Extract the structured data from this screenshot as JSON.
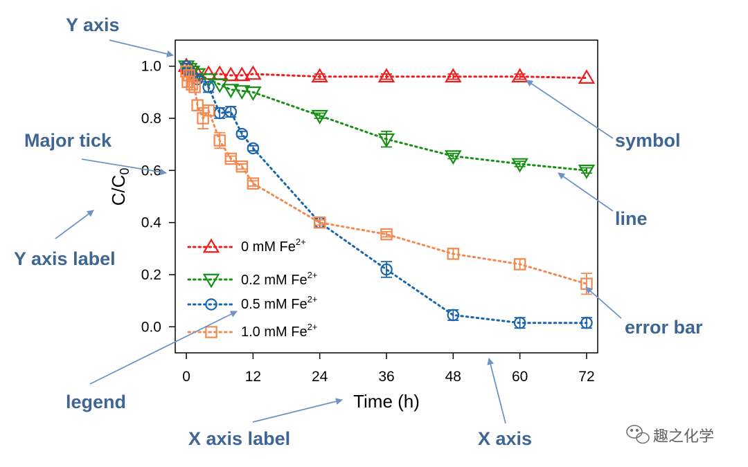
{
  "chart_data": {
    "type": "line",
    "xlabel": "Time (h)",
    "ylabel_main": "C/C",
    "ylabel_sub": "0",
    "xlim": [
      -2,
      74
    ],
    "ylim": [
      -0.1,
      1.1
    ],
    "xticks": [
      0,
      12,
      24,
      36,
      48,
      60,
      72
    ],
    "yticks": [
      0.0,
      0.2,
      0.4,
      0.6,
      0.8,
      1.0
    ],
    "ytick_labels": [
      "0.0",
      "0.2",
      "0.4",
      "0.6",
      "0.8",
      "1.0"
    ],
    "legend_position": "lower-left",
    "series": [
      {
        "name": "0 mM Fe2+",
        "label_main": "0 mM Fe",
        "label_sup": "2+",
        "color": "#ee1c1c",
        "marker": "triangle-up",
        "x": [
          0,
          0.5,
          1,
          2,
          4,
          6,
          8,
          10,
          12,
          24,
          36,
          48,
          60,
          72
        ],
        "y": [
          1.0,
          0.99,
          0.98,
          0.97,
          0.97,
          0.97,
          0.965,
          0.965,
          0.97,
          0.96,
          0.96,
          0.96,
          0.96,
          0.955
        ],
        "err": [
          0,
          0,
          0,
          0,
          0,
          0,
          0,
          0,
          0,
          0.01,
          0.01,
          0.01,
          0.01,
          0
        ]
      },
      {
        "name": "0.2 mM Fe2+",
        "label_main": "0.2 mM Fe",
        "label_sup": "2+",
        "color": "#159014",
        "marker": "triangle-down",
        "x": [
          0,
          0.5,
          1,
          2,
          4,
          6,
          8,
          10,
          12,
          24,
          36,
          48,
          60,
          72
        ],
        "y": [
          1.0,
          0.99,
          0.98,
          0.97,
          0.95,
          0.93,
          0.91,
          0.905,
          0.9,
          0.81,
          0.72,
          0.655,
          0.625,
          0.6
        ],
        "err": [
          0,
          0,
          0,
          0,
          0,
          0,
          0,
          0,
          0,
          0.01,
          0.03,
          0.01,
          0.01,
          0.01
        ]
      },
      {
        "name": "0.5 mM Fe2+",
        "label_main": "0.5 mM Fe",
        "label_sup": "2+",
        "color": "#1a64ad",
        "marker": "circle",
        "x": [
          0,
          0.5,
          1,
          2,
          4,
          6,
          8,
          10,
          12,
          24,
          36,
          48,
          60,
          72
        ],
        "y": [
          1.0,
          0.98,
          0.96,
          0.95,
          0.92,
          0.82,
          0.825,
          0.74,
          0.685,
          0.4,
          0.22,
          0.045,
          0.015,
          0.015
        ],
        "err": [
          0.01,
          0.01,
          0.01,
          0.01,
          0.02,
          0.02,
          0.02,
          0.01,
          0.01,
          0.02,
          0.03,
          0.02,
          0.02,
          0.02
        ]
      },
      {
        "name": "1.0 mM Fe2+",
        "label_main": "1.0 mM Fe",
        "label_sup": "2+",
        "color": "#f4884e",
        "marker": "square",
        "x": [
          0,
          0.25,
          0.5,
          1,
          1.5,
          2,
          3,
          4,
          6,
          8,
          10,
          12,
          24,
          36,
          48,
          60,
          72
        ],
        "y": [
          0.98,
          0.94,
          0.965,
          0.93,
          0.92,
          0.85,
          0.8,
          0.83,
          0.715,
          0.645,
          0.615,
          0.55,
          0.4,
          0.355,
          0.28,
          0.24,
          0.165
        ],
        "err": [
          0.02,
          0.02,
          0.02,
          0.02,
          0.02,
          0.02,
          0.04,
          0.02,
          0.03,
          0.01,
          0.01,
          0.01,
          0.01,
          0.01,
          0.02,
          0.02,
          0.04
        ]
      }
    ]
  },
  "annotations": {
    "y_axis": "Y axis",
    "major_tick": "Major tick",
    "y_axis_label": "Y axis label",
    "legend": "legend",
    "x_axis_label": "X axis label",
    "x_axis": "X axis",
    "symbol": "symbol",
    "line": "line",
    "error_bar": "error bar"
  },
  "watermark": {
    "text": "趣之化学",
    "icon": "wechat-icon"
  }
}
